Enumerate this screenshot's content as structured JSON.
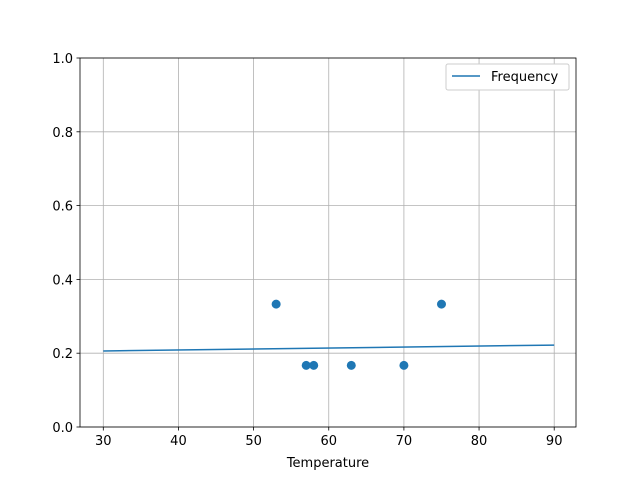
{
  "chart_data": {
    "type": "line+scatter",
    "title": "",
    "xlabel": "Temperature",
    "ylabel": "",
    "xlim": [
      26.9,
      92.9
    ],
    "ylim": [
      0.0,
      1.0
    ],
    "xticks": [
      "30",
      "40",
      "50",
      "60",
      "70",
      "80",
      "90"
    ],
    "yticks": [
      "0.0",
      "0.2",
      "0.4",
      "0.6",
      "0.8",
      "1.0"
    ],
    "grid": true,
    "legend": {
      "position": "top-right",
      "entries": [
        "Frequency"
      ]
    },
    "series": [
      {
        "name": "Frequency",
        "kind": "line",
        "color": "#1f77b4",
        "x": [
          30,
          90
        ],
        "y": [
          0.206,
          0.222
        ]
      },
      {
        "kind": "scatter",
        "color": "#1f77b4",
        "x": [
          53,
          57,
          58,
          63,
          70,
          75
        ],
        "y": [
          0.333,
          0.167,
          0.167,
          0.167,
          0.167,
          0.333
        ]
      }
    ]
  }
}
